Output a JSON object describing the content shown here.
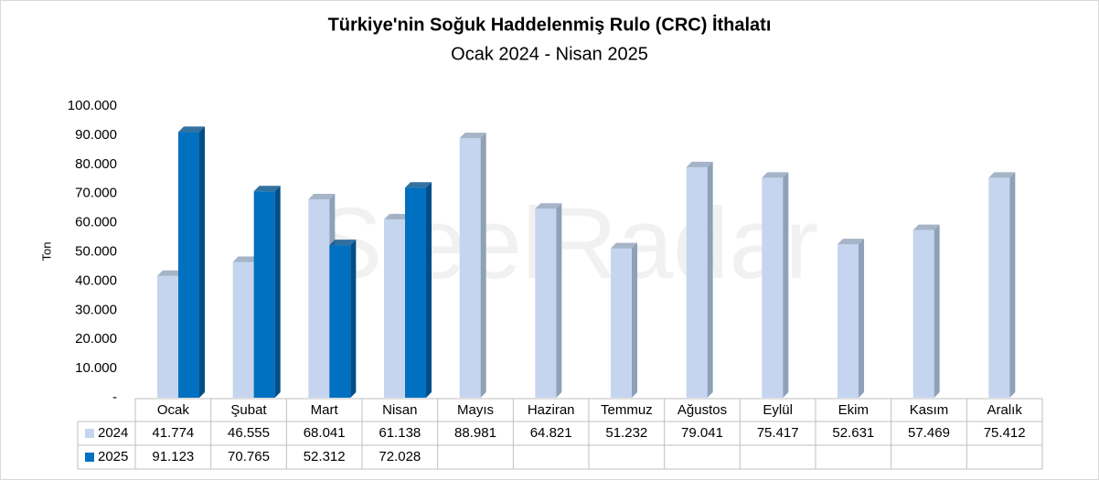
{
  "chart_data": {
    "type": "bar3d",
    "title": "Türkiye'nin Soğuk Haddelenmiş Rulo (CRC) İthalatı",
    "subtitle": "Ocak 2024 - Nisan 2025",
    "y_axis_label": "Ton",
    "watermark": "SteelRadar",
    "categories": [
      "Ocak",
      "Şubat",
      "Mart",
      "Nisan",
      "Mayıs",
      "Haziran",
      "Temmuz",
      "Ağustos",
      "Eylül",
      "Ekim",
      "Kasım",
      "Aralık"
    ],
    "series": [
      {
        "name": "2024",
        "color": "#c5d5ef",
        "side_color": "#8fa1b9",
        "values": [
          41774,
          46555,
          68041,
          61138,
          88981,
          64821,
          51232,
          79041,
          75417,
          52631,
          57469,
          75412
        ],
        "value_labels": [
          "41.774",
          "46.555",
          "68.041",
          "61.138",
          "88.981",
          "64.821",
          "51.232",
          "79.041",
          "75.417",
          "52.631",
          "57.469",
          "75.412"
        ]
      },
      {
        "name": "2025",
        "color": "#0070c0",
        "side_color": "#004e88",
        "values": [
          91123,
          70765,
          52312,
          72028,
          null,
          null,
          null,
          null,
          null,
          null,
          null,
          null
        ],
        "value_labels": [
          "91.123",
          "70.765",
          "52.312",
          "72.028",
          null,
          null,
          null,
          null,
          null,
          null,
          null,
          null
        ]
      }
    ],
    "ylim": [
      0,
      100000
    ],
    "yticks": [
      {
        "value": 0,
        "label": "-"
      },
      {
        "value": 10000,
        "label": "10.000"
      },
      {
        "value": 20000,
        "label": "20.000"
      },
      {
        "value": 30000,
        "label": "30.000"
      },
      {
        "value": 40000,
        "label": "40.000"
      },
      {
        "value": 50000,
        "label": "50.000"
      },
      {
        "value": 60000,
        "label": "60.000"
      },
      {
        "value": 70000,
        "label": "70.000"
      },
      {
        "value": 80000,
        "label": "80.000"
      },
      {
        "value": 90000,
        "label": "90.000"
      },
      {
        "value": 100000,
        "label": "100.000"
      }
    ]
  }
}
